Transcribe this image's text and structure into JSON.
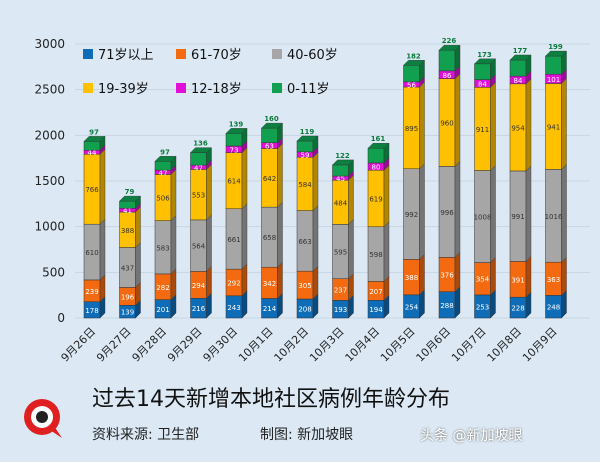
{
  "chart_data": {
    "type": "bar",
    "stacked": true,
    "categories": [
      "9月26日",
      "9月27日",
      "9月28日",
      "9月29日",
      "9月30日",
      "10月1日",
      "10月2日",
      "10月3日",
      "10月4日",
      "10月5日",
      "10月6日",
      "10月7日",
      "10月8日",
      "10月9日"
    ],
    "series": [
      {
        "name": "71岁以上",
        "color": "#0f6cb6",
        "values": [
          178,
          139,
          201,
          216,
          243,
          214,
          208,
          193,
          194,
          254,
          288,
          253,
          228,
          248
        ]
      },
      {
        "name": "61-70岁",
        "color": "#f36a10",
        "values": [
          239,
          196,
          282,
          294,
          292,
          342,
          305,
          237,
          207,
          388,
          376,
          354,
          391,
          363
        ]
      },
      {
        "name": "40-60岁",
        "color": "#a6a6a6",
        "values": [
          610,
          437,
          583,
          564,
          661,
          658,
          663,
          595,
          598,
          992,
          996,
          1008,
          991,
          1016
        ]
      },
      {
        "name": "19-39岁",
        "color": "#ffc000",
        "values": [
          766,
          388,
          506,
          553,
          614,
          642,
          584,
          484,
          619,
          895,
          960,
          911,
          954,
          941
        ]
      },
      {
        "name": "12-18岁",
        "color": "#e010d8",
        "values": [
          44,
          41,
          47,
          47,
          73,
          63,
          59,
          45,
          80,
          56,
          86,
          84,
          84,
          101
        ]
      },
      {
        "name": "0-11岁",
        "color": "#10a050",
        "values": [
          97,
          79,
          97,
          136,
          139,
          160,
          119,
          122,
          161,
          182,
          226,
          173,
          177,
          199
        ]
      }
    ],
    "ylim": [
      0,
      3000
    ],
    "yticks": [
      "0",
      "500",
      "1000",
      "1500",
      "2000",
      "2500",
      "3000"
    ],
    "grid": true,
    "legend": "top-left",
    "title": "过去14天新增本地社区病例年龄分布"
  },
  "footer": {
    "source": "资料来源:  卫生部",
    "credit": "制图:  新加坡眼",
    "watermark": "头条 @新加坡眼",
    "logo_text": "新加坡眼"
  }
}
